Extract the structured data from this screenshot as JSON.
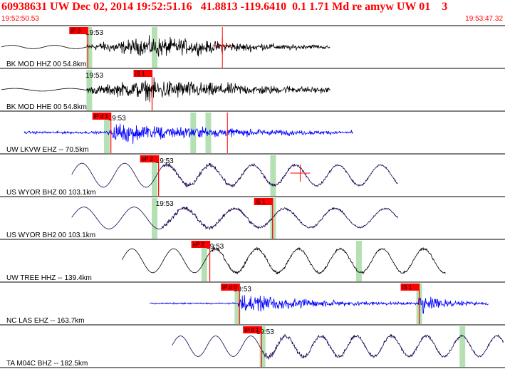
{
  "header": {
    "event_line": "60938631 UW Dec 02, 2014 19:52:51.16   41.8813 -119.6410  0.1 1.71 Md re amyw UW 01    3",
    "window_start": "19:52:50.53",
    "window_end": "19:53:47.32"
  },
  "colors": {
    "header_text": "#ff0000",
    "pick_box": "#ff0000",
    "pick_line": "#ff0000",
    "trace_black": "#000000",
    "trace_blue": "#0000ff",
    "trace_purple": "#1a0050",
    "window_band": "#b4e0b4"
  },
  "traces": [
    {
      "label": "BK MOD HHZ 00 54.8km",
      "time_label": "19:53",
      "color": "black",
      "start": 0.0,
      "end": 0.655,
      "onset": 0.17,
      "peak": 0.31,
      "decay": 0.2,
      "pre_amp": 0.05,
      "pre_period": 0.085,
      "max_amp": 0.42,
      "bands": [
        0.175,
        0.305
      ],
      "pick": {
        "text": "iP 0",
        "at": 0.172,
        "line": true
      },
      "aux_lines": [
        0.44
      ],
      "crosshair": {
        "x": 0.44,
        "y": 0.47
      }
    },
    {
      "label": "BK MOD HHE 00 54.8km",
      "time_label": "19:53",
      "color": "black",
      "start": 0.0,
      "end": 0.655,
      "onset": 0.17,
      "peak": 0.31,
      "decay": 0.25,
      "pre_amp": 0.04,
      "pre_period": 0.11,
      "max_amp": 0.45,
      "bands": [
        0.175
      ],
      "pick": {
        "text": "iS 1",
        "at": 0.3,
        "line": true
      }
    },
    {
      "label": "UW LKVW EHZ -- 70.5km",
      "time_label": "19:53",
      "color": "blue",
      "start": 0.045,
      "end": 0.7,
      "onset": 0.21,
      "peak": 0.23,
      "decay": 0.22,
      "pre_amp": 0.05,
      "pre_period": 0.008,
      "max_amp": 0.45,
      "bands": [
        0.21,
        0.382,
        0.412
      ],
      "pick": {
        "text": "iP d 1",
        "at": 0.218,
        "line": true
      },
      "aux_lines": [
        0.45
      ]
    },
    {
      "label": "US WYOR BHZ 00 103.1km",
      "time_label": "19:53",
      "color": "purple",
      "start": 0.14,
      "end": 0.79,
      "onset": 0.32,
      "peak": 0.58,
      "decay": 0.4,
      "pre_amp": 0.35,
      "pre_period": 0.095,
      "max_amp": 0.3,
      "wave_period": 0.085,
      "wave_amp": 0.3,
      "bands": [
        0.305,
        0.541
      ],
      "pick": {
        "text": "eP 2",
        "at": 0.313,
        "line": true
      },
      "crosshair": {
        "x": 0.595,
        "y": 0.45
      }
    },
    {
      "label": "US WYOR BH2 00 103.1km",
      "time_label": "19:53",
      "color": "purple",
      "start": 0.14,
      "end": 0.79,
      "onset": 0.32,
      "peak": 0.56,
      "decay": 0.4,
      "pre_amp": 0.32,
      "pre_period": 0.1,
      "max_amp": 0.3,
      "wave_period": 0.1,
      "wave_amp": 0.28,
      "bands": [
        0.305,
        0.541
      ],
      "pick": {
        "text": "iS 1",
        "at": 0.54,
        "line": true
      }
    },
    {
      "label": "UW TREE HHZ -- 139.4km",
      "time_label": "19:53",
      "color": "black",
      "start": 0.24,
      "end": 0.885,
      "onset": 0.42,
      "peak": 0.5,
      "decay": 0.6,
      "pre_amp": 0.35,
      "pre_period": 0.09,
      "max_amp": 0.22,
      "wave_period": 0.083,
      "wave_amp": 0.35,
      "bands": [
        0.404,
        0.712
      ],
      "pick": {
        "text": "eP 2",
        "at": 0.415,
        "line": true
      }
    },
    {
      "label": "NC LAS EHZ -- 163.7km",
      "time_label": "19:53",
      "color": "blue",
      "start": 0.295,
      "end": 0.97,
      "onset": 0.47,
      "peak": 0.48,
      "decay": 0.14,
      "pre_amp": 0.03,
      "pre_period": 0.008,
      "max_amp": 0.45,
      "second_burst": {
        "onset": 0.83,
        "decay": 0.06,
        "amp": 0.42
      },
      "bands": [
        0.47,
        0.832
      ],
      "pick": {
        "text": "iP d 0",
        "at": 0.474,
        "line": true
      },
      "pick2": {
        "text": "iS 1",
        "at": 0.832,
        "line": true
      }
    },
    {
      "label": "TA M04C BHZ -- 182.5km",
      "time_label": "19:53",
      "color": "purple",
      "start": 0.34,
      "end": 1.0,
      "onset": 0.52,
      "peak": 0.53,
      "decay": 0.5,
      "pre_amp": 0.3,
      "pre_period": 0.1,
      "max_amp": 0.32,
      "wave_period": 0.07,
      "wave_amp": 0.3,
      "bands": [
        0.52,
        0.918
      ],
      "pick": {
        "text": "iP d 1",
        "at": 0.518,
        "line": true
      }
    }
  ]
}
